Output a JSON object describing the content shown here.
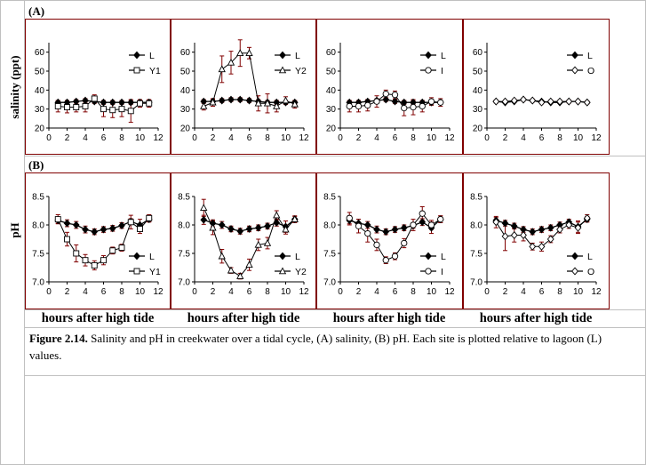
{
  "section_a_label": "(A)",
  "section_b_label": "(B)",
  "row_a_ylabel": "salinity (ppt)",
  "row_b_ylabel": "pH",
  "xlabel": "hours after high tide",
  "caption_title": "Figure 2.14.",
  "caption_text": "  Salinity and pH in creekwater over a tidal cycle, (A) salinity, (B) pH.  Each site is plotted relative to lagoon (L) values.",
  "colors": {
    "border": "#800000",
    "errorbar": "#800000",
    "line": "#000000",
    "grid": "#c0c0c0"
  },
  "chart_data": [
    {
      "type": "line",
      "panel": "A-1",
      "xlim": [
        0,
        12
      ],
      "ylim": [
        20,
        65
      ],
      "xticks": [
        0,
        2,
        4,
        6,
        8,
        10,
        12
      ],
      "yticks": [
        20,
        30,
        40,
        50,
        60
      ],
      "legend": [
        "L",
        "Y1"
      ],
      "legend_markers": [
        "filled-diamond",
        "open-square"
      ],
      "series": [
        {
          "name": "L",
          "marker": "filled-diamond",
          "x": [
            1,
            2,
            3,
            4,
            5,
            6,
            7,
            8,
            9,
            10,
            11
          ],
          "y": [
            33.5,
            33.5,
            34,
            34.5,
            34,
            33.5,
            33.5,
            33.5,
            33.5,
            33.5,
            33.5
          ],
          "err": [
            1,
            1,
            1,
            1,
            1,
            1,
            1,
            1,
            1,
            1,
            1
          ]
        },
        {
          "name": "Y1",
          "marker": "open-square",
          "x": [
            1,
            2,
            3,
            4,
            5,
            6,
            7,
            8,
            9,
            10,
            11
          ],
          "y": [
            31.5,
            31,
            31,
            31.5,
            35.5,
            30,
            29.5,
            30,
            29,
            33,
            33
          ],
          "err": [
            3,
            3,
            2.5,
            3,
            2,
            4,
            4,
            4,
            6,
            2,
            2
          ]
        }
      ]
    },
    {
      "type": "line",
      "panel": "A-2",
      "xlim": [
        0,
        12
      ],
      "ylim": [
        20,
        65
      ],
      "xticks": [
        0,
        2,
        4,
        6,
        8,
        10,
        12
      ],
      "yticks": [
        20,
        30,
        40,
        50,
        60
      ],
      "legend": [
        "L",
        "Y2"
      ],
      "legend_markers": [
        "filled-diamond",
        "open-triangle"
      ],
      "series": [
        {
          "name": "L",
          "marker": "filled-diamond",
          "x": [
            1,
            2,
            3,
            4,
            5,
            6,
            7,
            8,
            9,
            10,
            11
          ],
          "y": [
            34,
            34,
            34.5,
            35,
            35,
            34.5,
            34,
            33.5,
            33.5,
            33.5,
            33.5
          ],
          "err": [
            1,
            1,
            1,
            1,
            1,
            1,
            1,
            1,
            1,
            1,
            1
          ]
        },
        {
          "name": "Y2",
          "marker": "open-triangle",
          "x": [
            1,
            2,
            3,
            4,
            5,
            6,
            7,
            8,
            9,
            10,
            11
          ],
          "y": [
            31.5,
            33.5,
            51,
            54.5,
            59.5,
            59.5,
            33,
            33,
            31.5,
            34.5,
            32.5
          ],
          "err": [
            2,
            2,
            7,
            6,
            7,
            3,
            4,
            5,
            3,
            2,
            2
          ]
        }
      ]
    },
    {
      "type": "line",
      "panel": "A-3",
      "xlim": [
        0,
        12
      ],
      "ylim": [
        20,
        65
      ],
      "xticks": [
        0,
        2,
        4,
        6,
        8,
        10,
        12
      ],
      "yticks": [
        20,
        30,
        40,
        50,
        60
      ],
      "legend": [
        "L",
        "I"
      ],
      "legend_markers": [
        "filled-diamond",
        "open-circle"
      ],
      "series": [
        {
          "name": "L",
          "marker": "filled-diamond",
          "x": [
            1,
            2,
            3,
            4,
            5,
            6,
            7,
            8,
            9,
            10,
            11
          ],
          "y": [
            33.5,
            33.5,
            34,
            34.5,
            35,
            34,
            33.5,
            33.5,
            33.5,
            33.5,
            33.5
          ],
          "err": [
            1,
            1,
            1,
            1,
            1,
            1,
            1,
            1,
            1,
            1,
            1
          ]
        },
        {
          "name": "I",
          "marker": "open-circle",
          "x": [
            1,
            2,
            3,
            4,
            5,
            6,
            7,
            8,
            9,
            10,
            11
          ],
          "y": [
            31.5,
            31.5,
            32,
            34,
            38,
            37.5,
            30.5,
            31,
            31.5,
            34,
            33.5
          ],
          "err": [
            3,
            3,
            3,
            3,
            2,
            2,
            4,
            4,
            3,
            2,
            2
          ]
        }
      ]
    },
    {
      "type": "line",
      "panel": "A-4",
      "xlim": [
        0,
        12
      ],
      "ylim": [
        20,
        65
      ],
      "xticks": [
        0,
        2,
        4,
        6,
        8,
        10,
        12
      ],
      "yticks": [
        20,
        30,
        40,
        50,
        60
      ],
      "legend": [
        "L",
        "O"
      ],
      "legend_markers": [
        "filled-diamond",
        "open-diamond"
      ],
      "series": [
        {
          "name": "L",
          "marker": "filled-diamond",
          "x": [
            1,
            2,
            3,
            4,
            5,
            6,
            7,
            8,
            9,
            10,
            11
          ],
          "y": [
            34,
            33.5,
            34,
            35,
            34.5,
            34,
            33.5,
            33.5,
            34,
            34,
            33.5
          ],
          "err": [
            0.6,
            0.6,
            0.6,
            0.6,
            0.6,
            0.6,
            0.6,
            0.6,
            0.6,
            0.6,
            0.6
          ]
        },
        {
          "name": "O",
          "marker": "open-diamond",
          "x": [
            1,
            2,
            3,
            4,
            5,
            6,
            7,
            8,
            9,
            10,
            11
          ],
          "y": [
            34,
            34,
            34.5,
            35,
            34.5,
            33.5,
            34,
            34,
            34,
            34,
            33.5
          ],
          "err": [
            0.8,
            0.8,
            0.8,
            0.8,
            0.8,
            0.8,
            0.8,
            0.8,
            0.8,
            0.8,
            0.8
          ]
        }
      ]
    },
    {
      "type": "line",
      "panel": "B-1",
      "xlim": [
        0,
        12
      ],
      "ylim": [
        7.0,
        8.5
      ],
      "xticks": [
        0,
        2,
        4,
        6,
        8,
        10,
        12
      ],
      "yticks": [
        7.0,
        7.5,
        8.0,
        8.5
      ],
      "legend": [
        "L",
        "Y1"
      ],
      "legend_markers": [
        "filled-diamond",
        "open-square"
      ],
      "series": [
        {
          "name": "L",
          "marker": "filled-diamond",
          "x": [
            1,
            2,
            3,
            4,
            5,
            6,
            7,
            8,
            9,
            10,
            11
          ],
          "y": [
            8.08,
            8.03,
            8.0,
            7.92,
            7.88,
            7.92,
            7.94,
            7.99,
            8.06,
            8.0,
            8.1
          ],
          "err": [
            0.05,
            0.06,
            0.06,
            0.06,
            0.05,
            0.05,
            0.05,
            0.05,
            0.05,
            0.1,
            0.05
          ]
        },
        {
          "name": "Y1",
          "marker": "open-square",
          "x": [
            1,
            2,
            3,
            4,
            5,
            6,
            7,
            8,
            9,
            10,
            11
          ],
          "y": [
            8.1,
            7.75,
            7.5,
            7.38,
            7.29,
            7.38,
            7.55,
            7.6,
            8.05,
            7.93,
            8.12
          ],
          "err": [
            0.08,
            0.12,
            0.15,
            0.1,
            0.08,
            0.08,
            0.06,
            0.06,
            0.12,
            0.08,
            0.06
          ]
        }
      ]
    },
    {
      "type": "line",
      "panel": "B-2",
      "xlim": [
        0,
        12
      ],
      "ylim": [
        7.0,
        8.5
      ],
      "xticks": [
        0,
        2,
        4,
        6,
        8,
        10,
        12
      ],
      "yticks": [
        7.0,
        7.5,
        8.0,
        8.5
      ],
      "legend": [
        "L",
        "Y2"
      ],
      "legend_markers": [
        "filled-diamond",
        "open-triangle"
      ],
      "series": [
        {
          "name": "L",
          "marker": "filled-diamond",
          "x": [
            1,
            2,
            3,
            4,
            5,
            6,
            7,
            8,
            9,
            10,
            11
          ],
          "y": [
            8.09,
            8.03,
            8.0,
            7.93,
            7.89,
            7.93,
            7.95,
            7.98,
            8.04,
            7.97,
            8.1
          ],
          "err": [
            0.08,
            0.06,
            0.06,
            0.05,
            0.05,
            0.05,
            0.05,
            0.05,
            0.06,
            0.1,
            0.05
          ]
        },
        {
          "name": "Y2",
          "marker": "open-triangle",
          "x": [
            1,
            2,
            3,
            4,
            5,
            6,
            7,
            8,
            9,
            10,
            11
          ],
          "y": [
            8.3,
            7.95,
            7.45,
            7.2,
            7.1,
            7.3,
            7.65,
            7.68,
            8.17,
            7.92,
            8.1
          ],
          "err": [
            0.15,
            0.12,
            0.12,
            0.05,
            0.05,
            0.1,
            0.1,
            0.1,
            0.08,
            0.08,
            0.06
          ]
        }
      ]
    },
    {
      "type": "line",
      "panel": "B-3",
      "xlim": [
        0,
        12
      ],
      "ylim": [
        7.0,
        8.5
      ],
      "xticks": [
        0,
        2,
        4,
        6,
        8,
        10,
        12
      ],
      "yticks": [
        7.0,
        7.5,
        8.0,
        8.5
      ],
      "legend": [
        "L",
        "I"
      ],
      "legend_markers": [
        "filled-diamond",
        "open-circle"
      ],
      "series": [
        {
          "name": "L",
          "marker": "filled-diamond",
          "x": [
            1,
            2,
            3,
            4,
            5,
            6,
            7,
            8,
            9,
            10,
            11
          ],
          "y": [
            8.08,
            8.03,
            8.0,
            7.92,
            7.88,
            7.92,
            7.95,
            7.99,
            8.05,
            7.95,
            8.1
          ],
          "err": [
            0.08,
            0.07,
            0.06,
            0.06,
            0.05,
            0.05,
            0.05,
            0.05,
            0.06,
            0.1,
            0.06
          ]
        },
        {
          "name": "I",
          "marker": "open-circle",
          "x": [
            1,
            2,
            3,
            4,
            5,
            6,
            7,
            8,
            9,
            10,
            11
          ],
          "y": [
            8.12,
            7.98,
            7.85,
            7.65,
            7.38,
            7.45,
            7.68,
            8.0,
            8.2,
            8.0,
            8.1
          ],
          "err": [
            0.1,
            0.12,
            0.15,
            0.1,
            0.06,
            0.06,
            0.08,
            0.1,
            0.12,
            0.08,
            0.06
          ]
        }
      ]
    },
    {
      "type": "line",
      "panel": "B-4",
      "xlim": [
        0,
        12
      ],
      "ylim": [
        7.0,
        8.5
      ],
      "xticks": [
        0,
        2,
        4,
        6,
        8,
        10,
        12
      ],
      "yticks": [
        7.0,
        7.5,
        8.0,
        8.5
      ],
      "legend": [
        "L",
        "O"
      ],
      "legend_markers": [
        "filled-diamond",
        "open-diamond"
      ],
      "series": [
        {
          "name": "L",
          "marker": "filled-diamond",
          "x": [
            1,
            2,
            3,
            4,
            5,
            6,
            7,
            8,
            9,
            10,
            11
          ],
          "y": [
            8.08,
            8.03,
            7.98,
            7.92,
            7.88,
            7.92,
            7.95,
            8.0,
            8.05,
            7.97,
            8.1
          ],
          "err": [
            0.05,
            0.05,
            0.05,
            0.05,
            0.05,
            0.05,
            0.05,
            0.05,
            0.05,
            0.1,
            0.05
          ]
        },
        {
          "name": "O",
          "marker": "open-diamond",
          "x": [
            1,
            2,
            3,
            4,
            5,
            6,
            7,
            8,
            9,
            10,
            11
          ],
          "y": [
            8.05,
            7.8,
            7.82,
            7.82,
            7.62,
            7.62,
            7.75,
            7.92,
            8.0,
            7.95,
            8.12
          ],
          "err": [
            0.1,
            0.25,
            0.12,
            0.1,
            0.06,
            0.08,
            0.06,
            0.06,
            0.06,
            0.1,
            0.06
          ]
        }
      ]
    }
  ]
}
